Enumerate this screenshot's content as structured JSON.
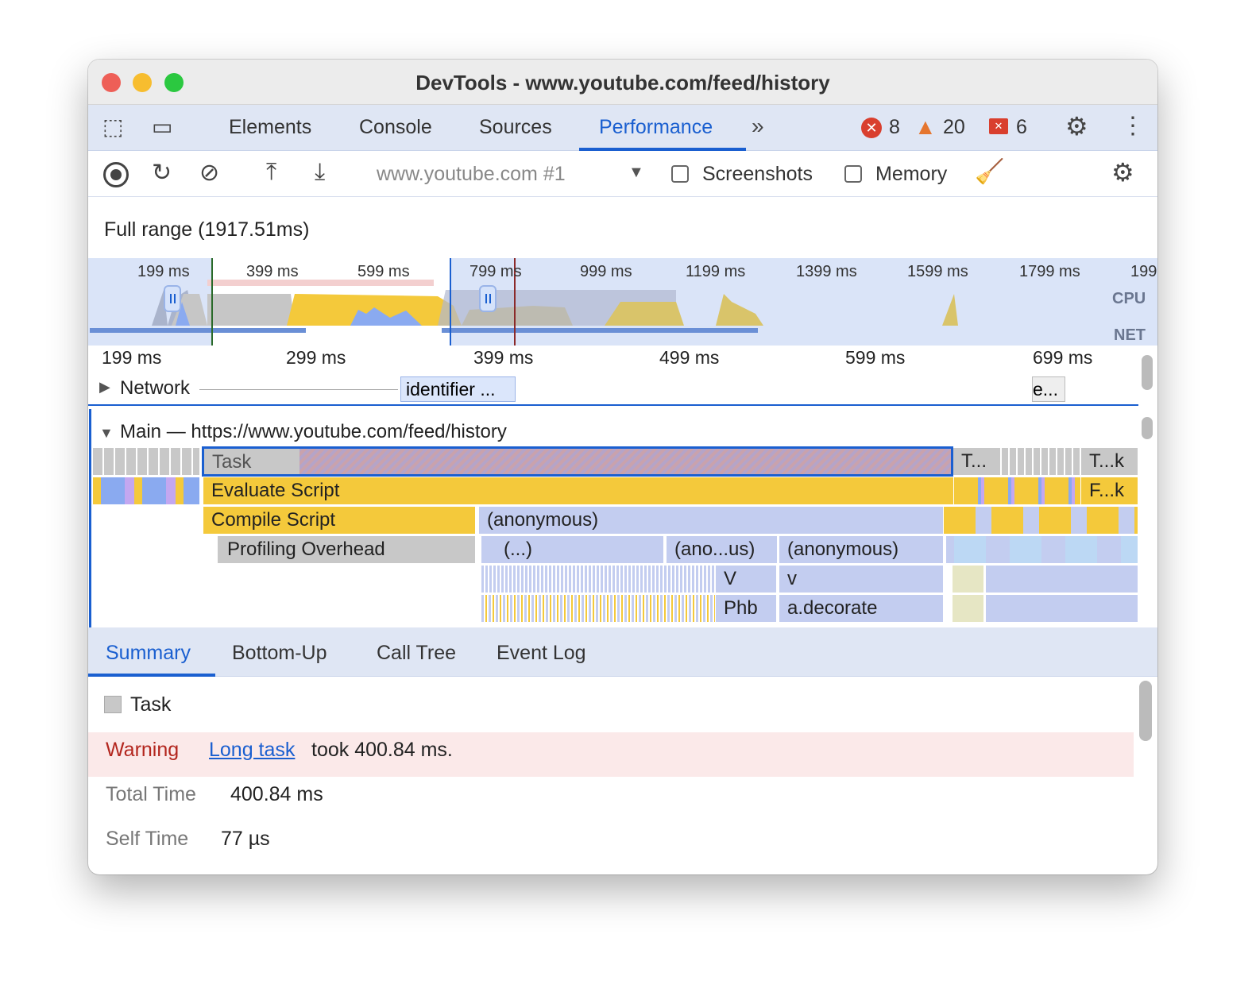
{
  "window": {
    "title": "DevTools - www.youtube.com/feed/history"
  },
  "tabs": [
    {
      "label": "Elements"
    },
    {
      "label": "Console"
    },
    {
      "label": "Sources"
    },
    {
      "label": "Performance",
      "active": true
    }
  ],
  "badges": {
    "errors": "8",
    "warnings": "20",
    "issues": "6"
  },
  "toolbar": {
    "target": "www.youtube.com #1",
    "screenshots_label": "Screenshots",
    "memory_label": "Memory",
    "screenshots_checked": false,
    "memory_checked": false
  },
  "range_label": "Full range (1917.51ms)",
  "overview": {
    "ticks": [
      "199 ms",
      "399 ms",
      "599 ms",
      "799 ms",
      "999 ms",
      "1199 ms",
      "1399 ms",
      "1599 ms",
      "1799 ms",
      "199"
    ],
    "cpu_label": "CPU",
    "net_label": "NET"
  },
  "ruler": {
    "ticks": [
      "199 ms",
      "299 ms",
      "399 ms",
      "499 ms",
      "599 ms",
      "699 ms"
    ]
  },
  "tracks": {
    "network_label": "Network",
    "network_item": "identifier ...",
    "network_item2": "e...",
    "main_label": "Main — https://www.youtube.com/feed/history"
  },
  "flame": {
    "task": "Task",
    "task2": "T...",
    "task3": "T...k",
    "evaluate": "Evaluate Script",
    "evaluate2": "F...k",
    "compile": "Compile Script",
    "anon1": "(anonymous)",
    "profiling": "Profiling Overhead",
    "dots": "(...)",
    "anon2": "(ano...us)",
    "anon3": "(anonymous)",
    "V": "V",
    "v": "v",
    "phb": "Phb",
    "decorate": "a.decorate"
  },
  "bottom_tabs": [
    {
      "label": "Summary",
      "active": true
    },
    {
      "label": "Bottom-Up"
    },
    {
      "label": "Call Tree"
    },
    {
      "label": "Event Log"
    }
  ],
  "summary": {
    "title": "Task",
    "warning_label": "Warning",
    "warning_link": "Long task",
    "warning_text": "took 400.84 ms.",
    "total_label": "Total Time",
    "total_value": "400.84 ms",
    "self_label": "Self Time",
    "self_value": "77 µs"
  },
  "colors": {
    "accent": "#1a5fd0",
    "scripting": "#f4c93b",
    "task": "#c8c8c8",
    "js": "#c3cdf0",
    "warning_bg": "#fbe9e9",
    "warning_text": "#b3261e"
  }
}
